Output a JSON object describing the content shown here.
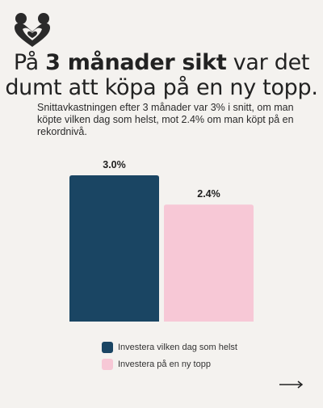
{
  "header": {
    "title_pre": "På ",
    "title_bold": "3 månader sikt",
    "title_post": " var det dumt att köpa på en ny topp.",
    "subtitle": "Snittavkastningen efter 3 månader var 3% i snitt, om man köpte vilken dag som helst, mot 2.4% om man köpt på en rekordnivå."
  },
  "chart_data": {
    "type": "bar",
    "categories": [
      "Investera vilken dag som helst",
      "Investera på en ny topp"
    ],
    "values": [
      3.0,
      2.4
    ],
    "data_labels": [
      "3.0%",
      "2.4%"
    ],
    "colors": [
      "#1a4563",
      "#f7c8d6"
    ],
    "title": "",
    "xlabel": "",
    "ylabel": "",
    "ylim": [
      0,
      3.0
    ],
    "grid": false,
    "legend": "bottom"
  },
  "legend": {
    "items": [
      {
        "label": "Investera vilken dag som helst",
        "color": "#1a4563"
      },
      {
        "label": "Investera på en ny topp",
        "color": "#f7c8d6"
      }
    ]
  },
  "icons": {
    "logo": "heart-people-logo",
    "next": "arrow-right-icon"
  }
}
